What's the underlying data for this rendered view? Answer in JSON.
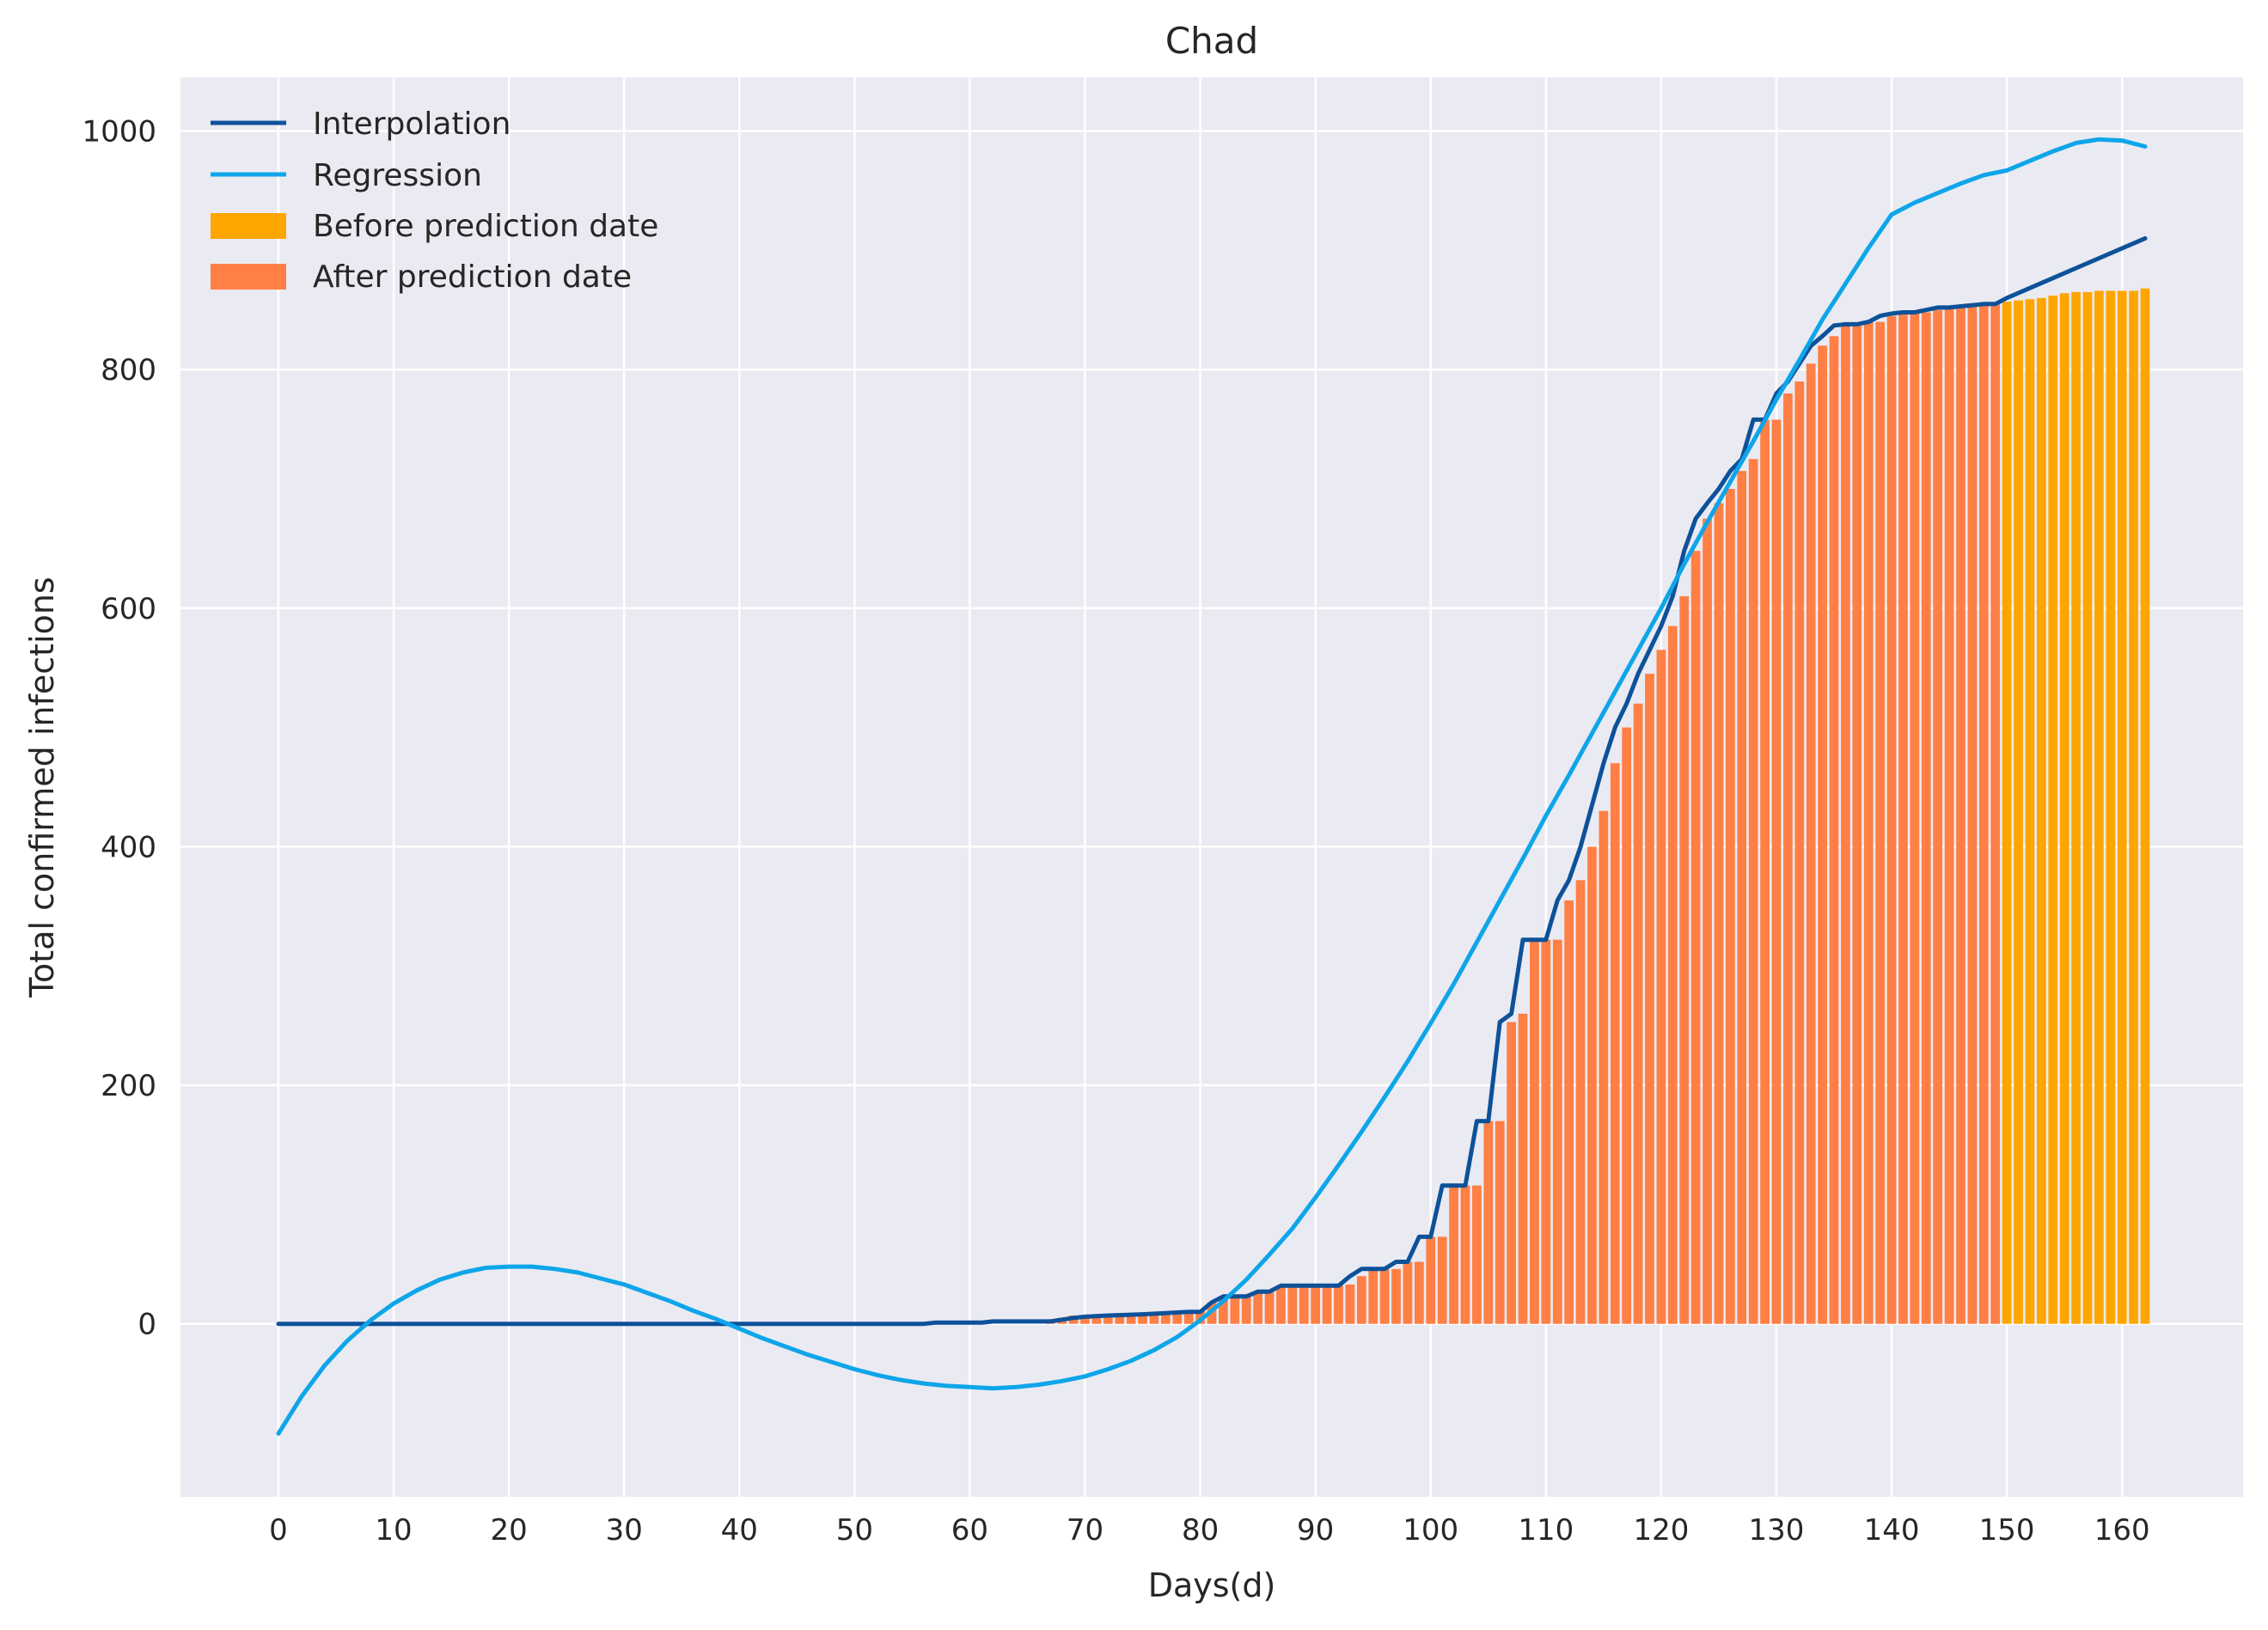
{
  "chart_data": {
    "type": "bar",
    "title": "Chad",
    "xlabel": "Days(d)",
    "ylabel": "Total confirmed infections",
    "xlim": [
      -8.5,
      170.5
    ],
    "ylim": [
      -145,
      1045
    ],
    "grid": true,
    "legend_position": "top-left",
    "xticks": [
      0,
      10,
      20,
      30,
      40,
      50,
      60,
      70,
      80,
      90,
      100,
      110,
      120,
      130,
      140,
      150,
      160
    ],
    "yticks": [
      0,
      200,
      400,
      600,
      800,
      1000
    ],
    "colors": {
      "background": "#eaeaf2",
      "grid": "#ffffff",
      "interpolation": "#0d5199",
      "regression": "#0ea5e9",
      "before": "#ffa500",
      "after": "#ff7f45"
    },
    "legend": [
      {
        "label": "Interpolation",
        "kind": "line",
        "color": "#0d5199"
      },
      {
        "label": "Regression",
        "kind": "line",
        "color": "#0ea5e9"
      },
      {
        "label": "Before prediction date",
        "kind": "patch",
        "color": "#ffa500"
      },
      {
        "label": "After prediction date",
        "kind": "patch",
        "color": "#ff7f45"
      }
    ],
    "prediction_start_day": 150,
    "bars_after": {
      "x": [
        67,
        68,
        69,
        70,
        71,
        72,
        73,
        74,
        75,
        76,
        77,
        78,
        79,
        80,
        81,
        82,
        83,
        84,
        85,
        86,
        87,
        88,
        89,
        90,
        91,
        92,
        93,
        94,
        95,
        96,
        97,
        98,
        99,
        100,
        101,
        102,
        103,
        104,
        105,
        106,
        107,
        108,
        109,
        110,
        111,
        112,
        113,
        114,
        115,
        116,
        117,
        118,
        119,
        120,
        121,
        122,
        123,
        124,
        125,
        126,
        127,
        128,
        129,
        130,
        131,
        132,
        133,
        134,
        135,
        136,
        137,
        138,
        139,
        140,
        141,
        142,
        143,
        144,
        145,
        146,
        147,
        148,
        149
      ],
      "values": [
        3,
        5,
        7,
        7,
        8,
        8,
        9,
        9,
        9,
        10,
        10,
        10,
        11,
        11,
        18,
        23,
        23,
        23,
        27,
        27,
        32,
        33,
        33,
        33,
        33,
        33,
        33,
        40,
        46,
        46,
        46,
        52,
        52,
        73,
        73,
        116,
        116,
        116,
        170,
        170,
        253,
        260,
        322,
        322,
        322,
        355,
        372,
        400,
        430,
        470,
        500,
        520,
        545,
        565,
        585,
        610,
        648,
        675,
        688,
        700,
        715,
        725,
        758,
        758,
        780,
        790,
        805,
        820,
        828,
        837,
        838,
        840,
        840,
        845,
        847,
        848,
        848,
        850,
        852,
        853,
        854,
        855,
        855
      ]
    },
    "bars_before": {
      "x": [
        150,
        151,
        152,
        153,
        154,
        155,
        156,
        157,
        158,
        159,
        160,
        161,
        162
      ],
      "values": [
        857,
        858,
        859,
        860,
        862,
        864,
        865,
        865,
        866,
        866,
        866,
        866,
        868
      ]
    },
    "series": [
      {
        "name": "Interpolation",
        "x": [
          0,
          56,
          57,
          61,
          62,
          67,
          69,
          70,
          72,
          75,
          79,
          80,
          81,
          82,
          84,
          85,
          86,
          87,
          92,
          93,
          94,
          96,
          97,
          98,
          99,
          100,
          101,
          102,
          103,
          104,
          105,
          106,
          107,
          108,
          109,
          110,
          111,
          112,
          113,
          115,
          116,
          117,
          118,
          120,
          121,
          122,
          123,
          124,
          125,
          126,
          127,
          128,
          129,
          130,
          131,
          132,
          133,
          134,
          135,
          136,
          137,
          138,
          139,
          140,
          141,
          142,
          143,
          144,
          145,
          146,
          147,
          148,
          149,
          150,
          162
        ],
        "values": [
          0,
          0,
          1,
          1,
          2,
          2,
          5,
          6,
          7,
          8,
          10,
          10,
          18,
          23,
          23,
          27,
          27,
          32,
          32,
          40,
          46,
          46,
          52,
          52,
          73,
          73,
          116,
          116,
          116,
          170,
          170,
          253,
          260,
          322,
          322,
          322,
          355,
          372,
          400,
          470,
          500,
          520,
          545,
          585,
          610,
          648,
          675,
          688,
          700,
          715,
          725,
          758,
          758,
          780,
          790,
          805,
          820,
          828,
          837,
          838,
          838,
          840,
          845,
          847,
          848,
          848,
          850,
          852,
          852,
          853,
          854,
          855,
          855,
          860,
          910
        ]
      },
      {
        "name": "Regression",
        "x": [
          0,
          2,
          4,
          6,
          8,
          10,
          12,
          14,
          16,
          18,
          20,
          22,
          24,
          26,
          28,
          30,
          32,
          34,
          36,
          38,
          40,
          42,
          44,
          46,
          48,
          50,
          52,
          54,
          56,
          58,
          60,
          62,
          64,
          66,
          68,
          70,
          72,
          74,
          76,
          78,
          80,
          82,
          84,
          86,
          88,
          90,
          92,
          94,
          96,
          98,
          100,
          102,
          104,
          106,
          108,
          110,
          112,
          114,
          116,
          118,
          120,
          122,
          124,
          126,
          128,
          130,
          132,
          134,
          136,
          138,
          140,
          142,
          144,
          146,
          148,
          150,
          152,
          154,
          156,
          158,
          160,
          162
        ],
        "values": [
          -92,
          -61,
          -35,
          -14,
          3,
          17,
          28,
          37,
          43,
          47,
          48,
          48,
          46,
          43,
          38,
          33,
          26,
          19,
          11,
          4,
          -4,
          -12,
          -19,
          -26,
          -32,
          -38,
          -43,
          -47,
          -50,
          -52,
          -53,
          -54,
          -53,
          -51,
          -48,
          -44,
          -38,
          -31,
          -22,
          -11,
          3,
          19,
          37,
          58,
          80,
          106,
          133,
          161,
          190,
          220,
          252,
          285,
          320,
          355,
          390,
          426,
          460,
          495,
          530,
          565,
          600,
          637,
          672,
          706,
          740,
          775,
          808,
          842,
          872,
          902,
          930,
          940,
          948,
          956,
          963,
          967,
          975,
          983,
          990,
          993,
          992,
          987
        ]
      }
    ]
  }
}
